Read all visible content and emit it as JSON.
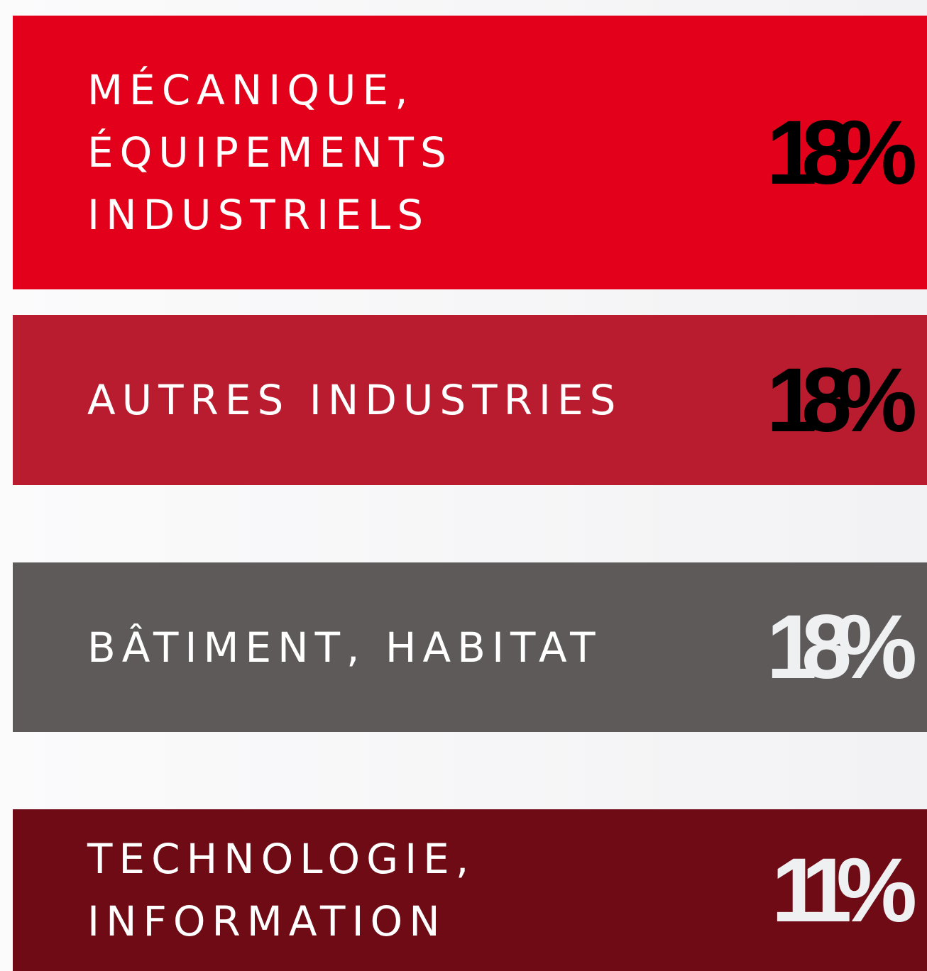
{
  "items": [
    {
      "lines": [
        "MÉCANIQUE,",
        "ÉQUIPEMENTS",
        "INDUSTRIELS"
      ],
      "value": "18%"
    },
    {
      "lines": [
        "AUTRES INDUSTRIES"
      ],
      "value": "18%"
    },
    {
      "lines": [
        "BÂTIMENT, HABITAT"
      ],
      "value": "18%"
    },
    {
      "lines": [
        "TECHNOLOGIE,",
        "INFORMATION"
      ],
      "value": "11%"
    }
  ]
}
